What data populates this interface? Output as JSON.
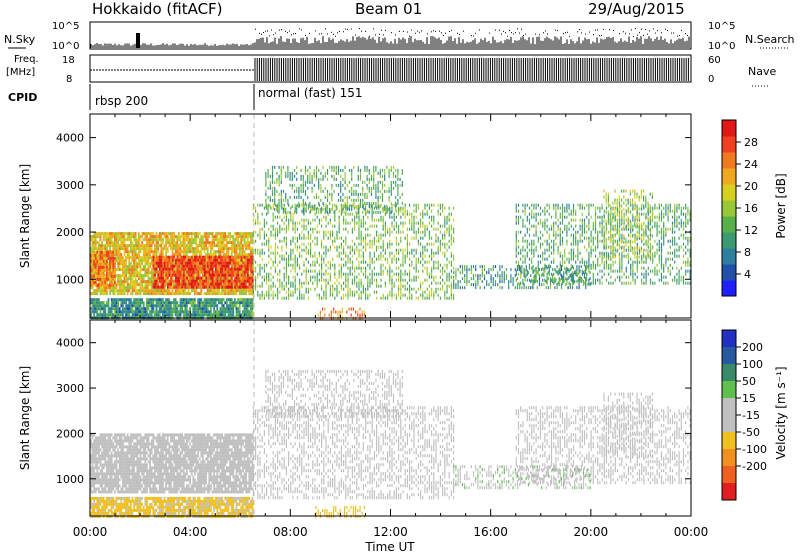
{
  "header": {
    "site": "Hokkaido (fitACF)",
    "beam": "Beam 01",
    "date": "29/Aug/2015"
  },
  "summary_panels": {
    "nsky_label": "N.Sky",
    "nsky_ticks": [
      "10^5",
      "10^0"
    ],
    "nsearch_label": "N.Search",
    "nsearch_ticks": [
      "10^5",
      "10^0"
    ],
    "freq_label_line1": "Freq.",
    "freq_label_line2": "[MHz]",
    "freq_ticks": [
      "18",
      "8"
    ],
    "nave_label": "Nave",
    "nave_ticks": [
      "60",
      "0"
    ],
    "cpid_label": "CPID",
    "cpid_segments": [
      {
        "label": "rbsp 200",
        "start_hour": 0,
        "end_hour": 6.5
      },
      {
        "label": "normal (fast) 151",
        "start_hour": 6.5,
        "end_hour": 24
      }
    ]
  },
  "axes": {
    "xlabel": "Time UT",
    "xticks": [
      "00:00",
      "04:00",
      "08:00",
      "12:00",
      "16:00",
      "20:00",
      "00:00"
    ],
    "ylabel": "Slant Range [km]",
    "yticks": [
      "1000",
      "2000",
      "3000",
      "4000"
    ]
  },
  "colorbars": {
    "power": {
      "label": "Power [dB]",
      "ticks": [
        "4",
        "8",
        "12",
        "16",
        "20",
        "24",
        "28"
      ],
      "colors": [
        "#2020ff",
        "#2050a8",
        "#2e7ea0",
        "#3c9a70",
        "#58b048",
        "#98c838",
        "#d8d020",
        "#f0a820",
        "#f07a20",
        "#f04020",
        "#e01818"
      ]
    },
    "velocity": {
      "label": "Velocity [m s⁻¹]",
      "ticks": [
        "200",
        "100",
        "50",
        "15",
        "-15",
        "-50",
        "-100",
        "-200"
      ],
      "colors": [
        "#2030c0",
        "#2858a0",
        "#3a8a6a",
        "#5fc050",
        "#c0c0c0",
        "#c0c0c0",
        "#f0c020",
        "#f09020",
        "#f06020",
        "#e02020"
      ]
    }
  },
  "chart_data": [
    {
      "type": "heatmap",
      "title": "Power",
      "xlabel": "Time UT",
      "ylabel": "Slant Range [km]",
      "xlim_hours": [
        0,
        24
      ],
      "ylim_km": [
        180,
        4500
      ],
      "colorbar_label": "Power [dB]",
      "colorbar_range": [
        0,
        32
      ],
      "regions": [
        {
          "t": [
            0,
            6.5
          ],
          "r": [
            700,
            2000
          ],
          "value": 20
        },
        {
          "t": [
            2.5,
            6.5
          ],
          "r": [
            850,
            1500
          ],
          "value": 28
        },
        {
          "t": [
            0,
            1.0
          ],
          "r": [
            900,
            1600
          ],
          "value": 24
        },
        {
          "t": [
            0,
            6.5
          ],
          "r": [
            180,
            600
          ],
          "value": 10
        },
        {
          "t": [
            6.5,
            14.5
          ],
          "r": [
            600,
            2600
          ],
          "value": 14
        },
        {
          "t": [
            7.0,
            12.5
          ],
          "r": [
            2400,
            3400
          ],
          "value": 12
        },
        {
          "t": [
            14.5,
            20.0
          ],
          "r": [
            800,
            1300
          ],
          "value": 10
        },
        {
          "t": [
            17.0,
            24.0
          ],
          "r": [
            900,
            2600
          ],
          "value": 12
        },
        {
          "t": [
            20.5,
            22.5
          ],
          "r": [
            1500,
            2900
          ],
          "value": 16
        },
        {
          "t": [
            9.0,
            11.0
          ],
          "r": [
            180,
            400
          ],
          "value": 24
        }
      ]
    },
    {
      "type": "heatmap",
      "title": "Velocity",
      "xlabel": "Time UT",
      "ylabel": "Slant Range [km]",
      "xlim_hours": [
        0,
        24
      ],
      "ylim_km": [
        180,
        4500
      ],
      "colorbar_label": "Velocity [m s⁻¹]",
      "colorbar_range": [
        -250,
        250
      ],
      "regions": [
        {
          "t": [
            0,
            6.5
          ],
          "r": [
            700,
            2000
          ],
          "value": 0
        },
        {
          "t": [
            0,
            6.5
          ],
          "r": [
            180,
            600
          ],
          "value": -60
        },
        {
          "t": [
            6.5,
            14.5
          ],
          "r": [
            600,
            2600
          ],
          "value": 0
        },
        {
          "t": [
            7.0,
            12.5
          ],
          "r": [
            2400,
            3400
          ],
          "value": 0
        },
        {
          "t": [
            14.5,
            20.0
          ],
          "r": [
            800,
            1300
          ],
          "value": 40
        },
        {
          "t": [
            17.0,
            24.0
          ],
          "r": [
            900,
            2600
          ],
          "value": 0
        },
        {
          "t": [
            20.5,
            22.5
          ],
          "r": [
            1500,
            2900
          ],
          "value": 5
        },
        {
          "t": [
            9.0,
            11.0
          ],
          "r": [
            180,
            400
          ],
          "value": -80
        }
      ]
    }
  ]
}
